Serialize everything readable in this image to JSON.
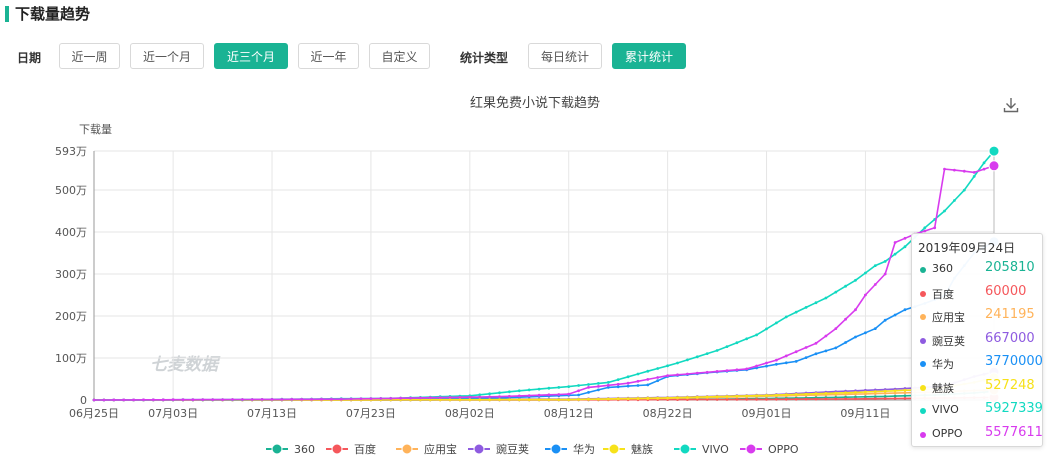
{
  "page": {
    "title": "下载量趋势",
    "filters": {
      "date_label": "日期",
      "date_options": [
        "近一周",
        "近一个月",
        "近三个月",
        "近一年",
        "自定义"
      ],
      "date_selected": "近三个月",
      "type_label": "统计类型",
      "type_options": [
        "每日统计",
        "累计统计"
      ],
      "type_selected": "累计统计"
    },
    "watermark": "七麦数据"
  },
  "chart_data": {
    "type": "line",
    "title": "红果免费小说下载趋势",
    "ylabel": "下载量",
    "y_unit": "万",
    "ylim": [
      0,
      593
    ],
    "y_ticks": [
      "593万",
      "500万",
      "400万",
      "300万",
      "200万",
      "100万",
      "0"
    ],
    "y_tick_values": [
      593,
      500,
      400,
      300,
      200,
      100,
      0
    ],
    "x_range": [
      "2019-06-25",
      "2019-09-24"
    ],
    "x_tick_labels": [
      "06月25日",
      "07月03日",
      "07月13日",
      "07月23日",
      "08月02日",
      "08月12日",
      "08月22日",
      "09月01日",
      "09月11日"
    ],
    "x_tick_dates": [
      "2019-06-25",
      "2019-07-03",
      "2019-07-13",
      "2019-07-23",
      "2019-08-02",
      "2019-08-12",
      "2019-08-22",
      "2019-09-01",
      "2019-09-11"
    ],
    "grid": true,
    "legend_position": "bottom",
    "series": [
      {
        "name": "360",
        "color": "#1ab394",
        "points": [
          [
            "2019-06-25",
            0
          ],
          [
            "2019-08-12",
            0.5
          ],
          [
            "2019-08-27",
            2
          ],
          [
            "2019-09-05",
            5
          ],
          [
            "2019-09-12",
            8
          ],
          [
            "2019-09-18",
            12
          ],
          [
            "2019-09-22",
            17
          ],
          [
            "2019-09-24",
            20.58
          ]
        ]
      },
      {
        "name": "百度",
        "color": "#f5575b",
        "points": [
          [
            "2019-06-25",
            0
          ],
          [
            "2019-08-12",
            0.3
          ],
          [
            "2019-09-01",
            1.5
          ],
          [
            "2019-09-12",
            3
          ],
          [
            "2019-09-24",
            6
          ]
        ]
      },
      {
        "name": "应用宝",
        "color": "#ffb35a",
        "points": [
          [
            "2019-06-25",
            0
          ],
          [
            "2019-08-12",
            1
          ],
          [
            "2019-08-22",
            4
          ],
          [
            "2019-09-01",
            9
          ],
          [
            "2019-09-10",
            14
          ],
          [
            "2019-09-18",
            19
          ],
          [
            "2019-09-24",
            24.12
          ]
        ]
      },
      {
        "name": "豌豆荚",
        "color": "#8e5be0",
        "points": [
          [
            "2019-06-25",
            0
          ],
          [
            "2019-08-12",
            2
          ],
          [
            "2019-08-22",
            6
          ],
          [
            "2019-09-01",
            12
          ],
          [
            "2019-09-08",
            20
          ],
          [
            "2019-09-14",
            26
          ],
          [
            "2019-09-19",
            33
          ],
          [
            "2019-09-22",
            56
          ],
          [
            "2019-09-24",
            66.7
          ]
        ]
      },
      {
        "name": "华为",
        "color": "#1a90f5",
        "points": [
          [
            "2019-06-25",
            0
          ],
          [
            "2019-07-15",
            0.5
          ],
          [
            "2019-07-25",
            2
          ],
          [
            "2019-08-05",
            5
          ],
          [
            "2019-08-13",
            12
          ],
          [
            "2019-08-16",
            30
          ],
          [
            "2019-08-20",
            36
          ],
          [
            "2019-08-22",
            56
          ],
          [
            "2019-08-26",
            65
          ],
          [
            "2019-08-30",
            72
          ],
          [
            "2019-09-02",
            85
          ],
          [
            "2019-09-04",
            92
          ],
          [
            "2019-09-06",
            110
          ],
          [
            "2019-09-08",
            124
          ],
          [
            "2019-09-10",
            150
          ],
          [
            "2019-09-12",
            170
          ],
          [
            "2019-09-13",
            190
          ],
          [
            "2019-09-15",
            215
          ],
          [
            "2019-09-17",
            230
          ],
          [
            "2019-09-19",
            248
          ],
          [
            "2019-09-20",
            290
          ],
          [
            "2019-09-22",
            350
          ],
          [
            "2019-09-24",
            377
          ]
        ]
      },
      {
        "name": "魅族",
        "color": "#f7e21a",
        "points": [
          [
            "2019-06-25",
            0
          ],
          [
            "2019-08-12",
            1
          ],
          [
            "2019-08-22",
            5
          ],
          [
            "2019-09-01",
            11
          ],
          [
            "2019-09-10",
            18
          ],
          [
            "2019-09-18",
            26
          ],
          [
            "2019-09-22",
            42
          ],
          [
            "2019-09-24",
            52.72
          ]
        ]
      },
      {
        "name": "VIVO",
        "color": "#12d9c1",
        "points": [
          [
            "2019-06-25",
            0
          ],
          [
            "2019-07-10",
            1
          ],
          [
            "2019-07-25",
            4
          ],
          [
            "2019-08-02",
            10
          ],
          [
            "2019-08-07",
            22
          ],
          [
            "2019-08-12",
            32
          ],
          [
            "2019-08-16",
            42
          ],
          [
            "2019-08-19",
            62
          ],
          [
            "2019-08-23",
            88
          ],
          [
            "2019-08-27",
            118
          ],
          [
            "2019-08-31",
            155
          ],
          [
            "2019-09-03",
            198
          ],
          [
            "2019-09-07",
            243
          ],
          [
            "2019-09-10",
            285
          ],
          [
            "2019-09-12",
            320
          ],
          [
            "2019-09-13",
            330
          ],
          [
            "2019-09-15",
            365
          ],
          [
            "2019-09-17",
            410
          ],
          [
            "2019-09-19",
            450
          ],
          [
            "2019-09-21",
            500
          ],
          [
            "2019-09-23",
            565
          ],
          [
            "2019-09-24",
            592.73
          ]
        ]
      },
      {
        "name": "OPPO",
        "color": "#d83bee",
        "points": [
          [
            "2019-06-25",
            0
          ],
          [
            "2019-07-20",
            2
          ],
          [
            "2019-08-05",
            8
          ],
          [
            "2019-08-12",
            14
          ],
          [
            "2019-08-14",
            30
          ],
          [
            "2019-08-18",
            40
          ],
          [
            "2019-08-22",
            58
          ],
          [
            "2019-08-26",
            66
          ],
          [
            "2019-08-30",
            74
          ],
          [
            "2019-09-02",
            95
          ],
          [
            "2019-09-04",
            115
          ],
          [
            "2019-09-06",
            135
          ],
          [
            "2019-09-08",
            170
          ],
          [
            "2019-09-10",
            215
          ],
          [
            "2019-09-11",
            250
          ],
          [
            "2019-09-13",
            300
          ],
          [
            "2019-09-14",
            375
          ],
          [
            "2019-09-16",
            395
          ],
          [
            "2019-09-18",
            410
          ],
          [
            "2019-09-19",
            550
          ],
          [
            "2019-09-21",
            545
          ],
          [
            "2019-09-22",
            542
          ],
          [
            "2019-09-24",
            557.76
          ]
        ]
      }
    ],
    "tooltip": {
      "date": "2019年09月24日",
      "items": [
        {
          "name": "360",
          "value": "205810",
          "color": "#1ab394"
        },
        {
          "name": "百度",
          "value": "60000",
          "color": "#f5575b"
        },
        {
          "name": "应用宝",
          "value": "241195",
          "color": "#ffb35a"
        },
        {
          "name": "豌豆荚",
          "value": "667000",
          "color": "#8e5be0"
        },
        {
          "name": "华为",
          "value": "3770000",
          "color": "#1a90f5"
        },
        {
          "name": "魅族",
          "value": "527248",
          "color": "#f7e21a"
        },
        {
          "name": "VIVO",
          "value": "5927339",
          "color": "#12d9c1"
        },
        {
          "name": "OPPO",
          "value": "5577611",
          "color": "#d83bee"
        }
      ]
    }
  }
}
